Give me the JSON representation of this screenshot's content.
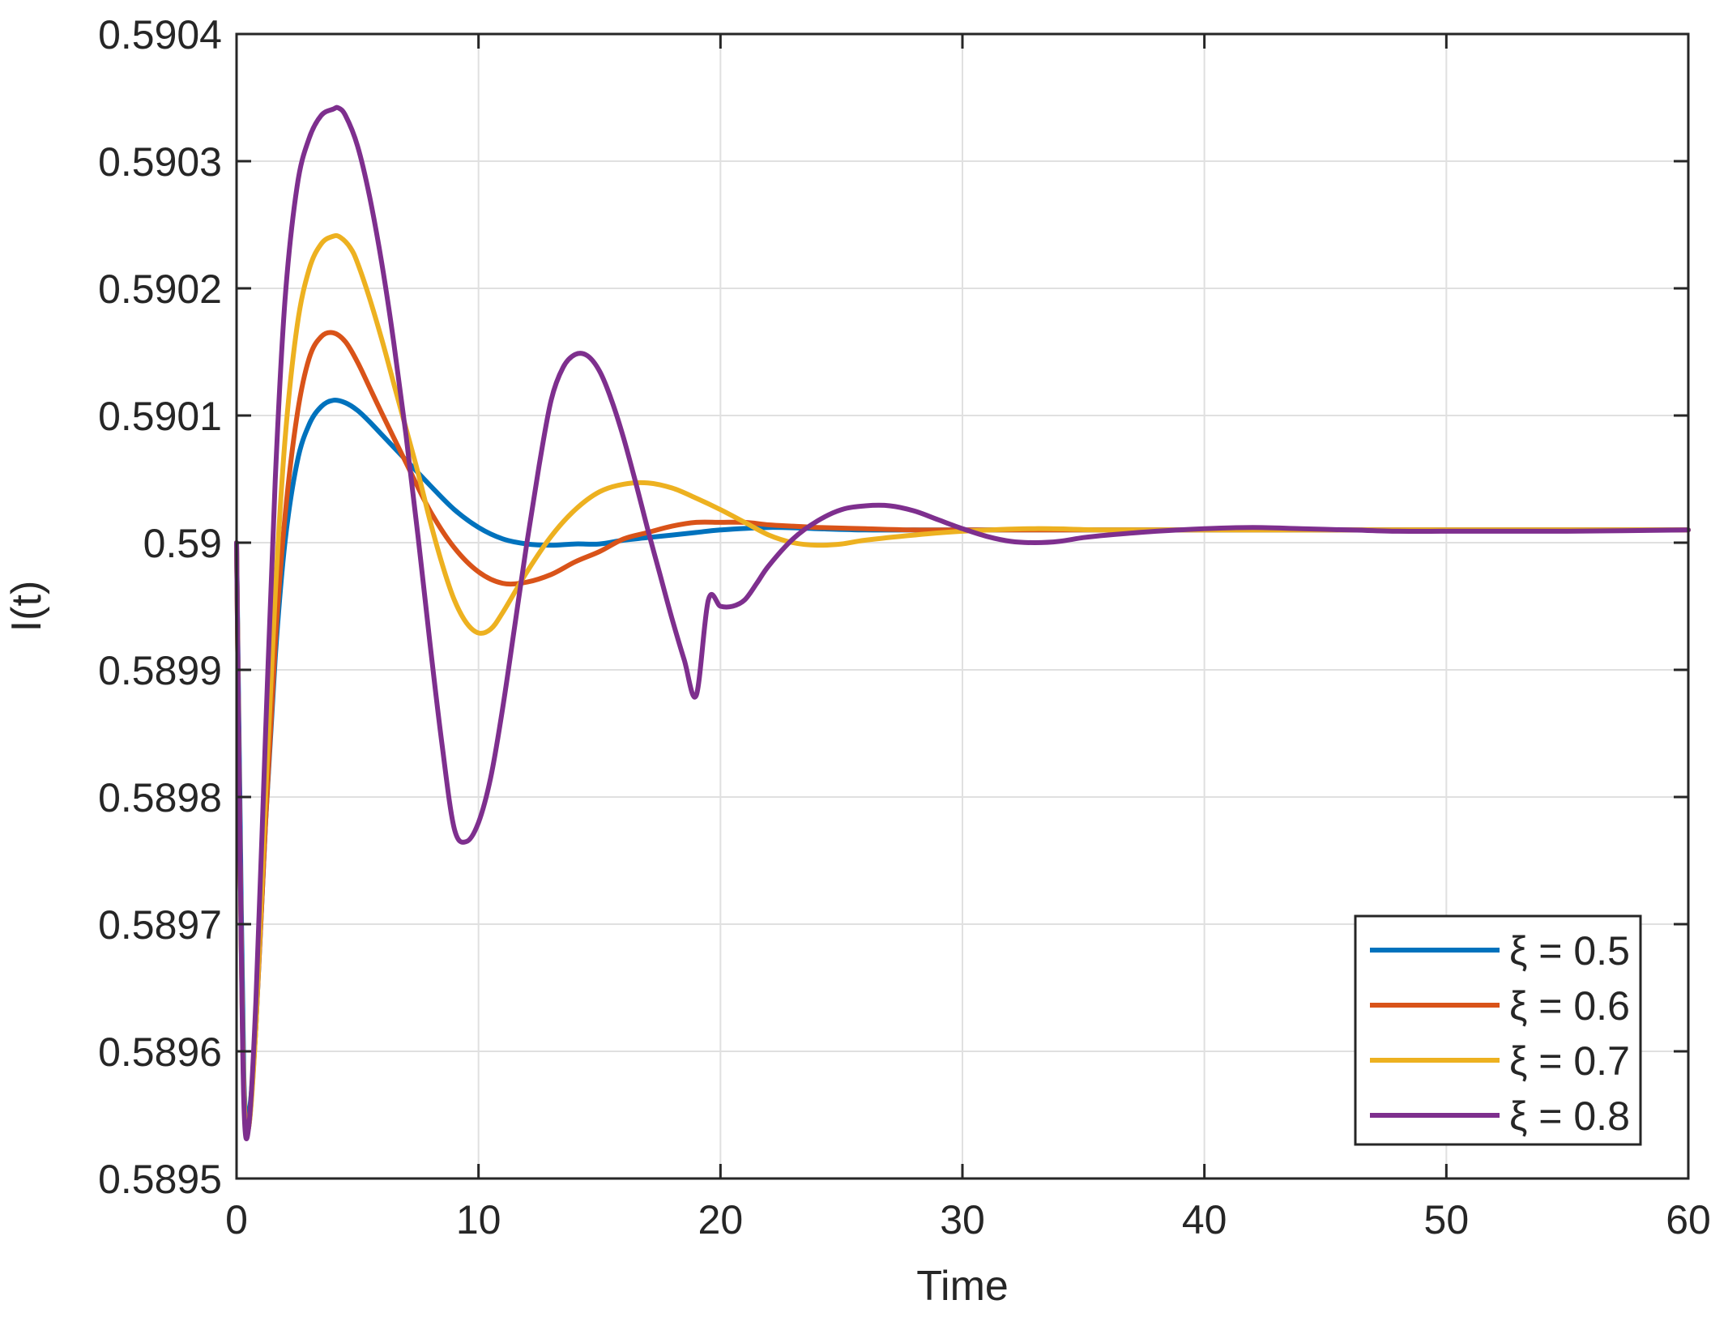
{
  "chart_data": {
    "type": "line",
    "title": "",
    "xlabel": "Time",
    "ylabel": "I(t)",
    "xlim": [
      0,
      60
    ],
    "ylim": [
      0.5895,
      0.5904
    ],
    "x_ticks": [
      0,
      10,
      20,
      30,
      40,
      50,
      60
    ],
    "x_tick_labels": [
      "0",
      "10",
      "20",
      "30",
      "40",
      "50",
      "60"
    ],
    "y_ticks": [
      0.5895,
      0.5896,
      0.5897,
      0.5898,
      0.5899,
      0.59,
      0.5901,
      0.5902,
      0.5903,
      0.5904
    ],
    "y_tick_labels": [
      "0.5895",
      "0.5896",
      "0.5897",
      "0.5898",
      "0.5899",
      "0.59",
      "0.5901",
      "0.5902",
      "0.5903",
      "0.5904"
    ],
    "grid": true,
    "legend_position": "bottom-right",
    "series": [
      {
        "name": "ξ = 0.5",
        "color": "#0072BD",
        "x": [
          0,
          0.15,
          0.3,
          0.5,
          0.8,
          1.2,
          1.6,
          2,
          2.5,
          3,
          3.5,
          4,
          4.5,
          5,
          5.5,
          6,
          7,
          8,
          9,
          10,
          11,
          12,
          13,
          14,
          15,
          16,
          17,
          18,
          19,
          20,
          22,
          24,
          26,
          28,
          30,
          35,
          40,
          45,
          50,
          55,
          60
        ],
        "y": [
          0.59,
          0.58978,
          0.58958,
          0.58955,
          0.58962,
          0.58978,
          0.58991,
          0.59,
          0.590063,
          0.590093,
          0.590107,
          0.590112,
          0.59011,
          0.590104,
          0.590095,
          0.590085,
          0.590065,
          0.590045,
          0.590026,
          0.590012,
          0.590003,
          0.589999,
          0.589998,
          0.589999,
          0.589999,
          0.590002,
          0.590004,
          0.590006,
          0.590008,
          0.59001,
          0.590012,
          0.590011,
          0.59001,
          0.59001,
          0.59001,
          0.59001,
          0.59001,
          0.59001,
          0.59001,
          0.59001,
          0.59001
        ]
      },
      {
        "name": "ξ = 0.6",
        "color": "#D95319",
        "x": [
          0,
          0.15,
          0.3,
          0.5,
          0.8,
          1.2,
          1.6,
          2,
          2.5,
          3,
          3.5,
          4,
          4.5,
          5,
          5.5,
          6,
          7,
          8,
          9,
          10,
          11,
          12,
          13,
          14,
          15,
          16,
          17,
          18,
          19,
          20,
          21,
          22,
          23,
          24,
          26,
          28,
          30,
          35,
          40,
          45,
          50,
          55,
          60
        ],
        "y": [
          0.59,
          0.58975,
          0.58957,
          0.58954,
          0.58962,
          0.58978,
          0.58992,
          0.59002,
          0.5901,
          0.590145,
          0.590162,
          0.590165,
          0.590158,
          0.590142,
          0.590122,
          0.590102,
          0.590063,
          0.590025,
          0.589996,
          0.589977,
          0.589968,
          0.589969,
          0.589975,
          0.589985,
          0.589993,
          0.590003,
          0.590008,
          0.590013,
          0.590016,
          0.590016,
          0.590016,
          0.590014,
          0.590013,
          0.590012,
          0.590011,
          0.59001,
          0.59001,
          0.59001,
          0.59001,
          0.59001,
          0.59001,
          0.59001,
          0.59001
        ]
      },
      {
        "name": "ξ = 0.7",
        "color": "#EDB120",
        "x": [
          0,
          0.15,
          0.3,
          0.5,
          0.8,
          1.2,
          1.6,
          2,
          2.5,
          3,
          3.5,
          4,
          4.3,
          4.7,
          5,
          5.5,
          6,
          6.5,
          7,
          7.5,
          8,
          8.5,
          9,
          9.5,
          10,
          10.5,
          11,
          12,
          13,
          14,
          15,
          16,
          17,
          18,
          19,
          20,
          21,
          22,
          23,
          24,
          25,
          26,
          28,
          30,
          33,
          36,
          40,
          45,
          50,
          55,
          60
        ],
        "y": [
          0.59,
          0.58975,
          0.58957,
          0.58954,
          0.58962,
          0.5898,
          0.58996,
          0.59008,
          0.59017,
          0.590215,
          0.590235,
          0.590241,
          0.59024,
          0.590232,
          0.59022,
          0.590192,
          0.59016,
          0.590125,
          0.59009,
          0.590055,
          0.590017,
          0.589983,
          0.589955,
          0.589937,
          0.589929,
          0.589932,
          0.589945,
          0.589977,
          0.590005,
          0.590026,
          0.59004,
          0.590046,
          0.590047,
          0.590043,
          0.590035,
          0.590026,
          0.590016,
          0.590006,
          0.59,
          0.589998,
          0.589999,
          0.590002,
          0.590006,
          0.590009,
          0.590011,
          0.59001,
          0.59001,
          0.59001,
          0.59001,
          0.59001,
          0.59001
        ]
      },
      {
        "name": "ξ = 0.8",
        "color": "#7E2F8E",
        "x": [
          0,
          0.15,
          0.3,
          0.5,
          0.8,
          1.2,
          1.6,
          2,
          2.5,
          3,
          3.5,
          4,
          4.2,
          4.5,
          5,
          5.5,
          6,
          6.5,
          7,
          7.5,
          8,
          8.5,
          9,
          9.5,
          10,
          10.5,
          11,
          11.5,
          12,
          12.5,
          13,
          13.5,
          14,
          14.5,
          15,
          15.5,
          16,
          16.5,
          17,
          17.5,
          18,
          18.5,
          19,
          19.5,
          20,
          20.5,
          21,
          21.5,
          22,
          23,
          24,
          25,
          26,
          27,
          28,
          29,
          30,
          31,
          32,
          33,
          34,
          35,
          36,
          38,
          40,
          42,
          44,
          46,
          48,
          50,
          52,
          55,
          60
        ],
        "y": [
          0.59,
          0.58975,
          0.58956,
          0.58954,
          0.58964,
          0.58985,
          0.59005,
          0.59019,
          0.59028,
          0.590318,
          0.590336,
          0.590341,
          0.590342,
          0.590336,
          0.590312,
          0.590272,
          0.59022,
          0.590157,
          0.590085,
          0.590005,
          0.58992,
          0.58984,
          0.589775,
          0.589765,
          0.58978,
          0.589815,
          0.58987,
          0.589935,
          0.59,
          0.59006,
          0.590112,
          0.590138,
          0.590148,
          0.590147,
          0.590135,
          0.590112,
          0.590082,
          0.590047,
          0.59001,
          0.589975,
          0.58994,
          0.589908,
          0.58988,
          0.589955,
          0.58995,
          0.58995,
          0.589955,
          0.589968,
          0.589982,
          0.590003,
          0.590017,
          0.590026,
          0.590029,
          0.590029,
          0.590025,
          0.590018,
          0.590011,
          0.590005,
          0.590001,
          0.59,
          0.590001,
          0.590004,
          0.590006,
          0.590009,
          0.590011,
          0.590012,
          0.590011,
          0.59001,
          0.590009,
          0.590009,
          0.590009,
          0.590009,
          0.59001
        ]
      }
    ]
  }
}
